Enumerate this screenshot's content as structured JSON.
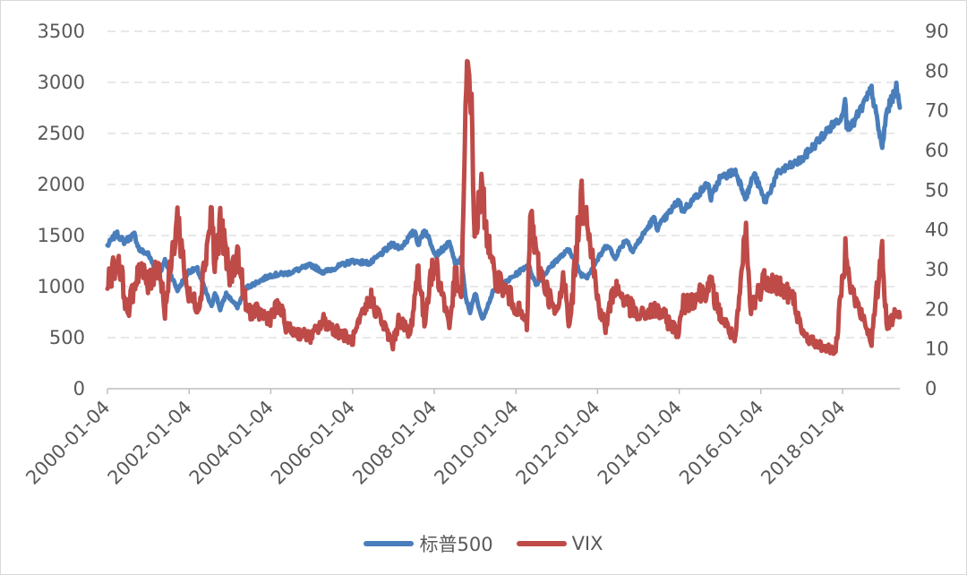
{
  "chart_data": {
    "type": "line",
    "title": "",
    "xlabel": "",
    "ylabel": "",
    "y_left": {
      "min": 0,
      "max": 3500,
      "ticks": [
        "0",
        "500",
        "1000",
        "1500",
        "2000",
        "2500",
        "3000",
        "3500"
      ]
    },
    "y_right": {
      "min": 0,
      "max": 90,
      "ticks": [
        "0",
        "10",
        "20",
        "30",
        "40",
        "50",
        "60",
        "70",
        "80",
        "90"
      ]
    },
    "x_range": [
      "2000-01-04",
      "2019-05-31"
    ],
    "x_ticks": [
      "2000-01-04",
      "2002-01-04",
      "2004-01-04",
      "2006-01-04",
      "2008-01-04",
      "2010-01-04",
      "2012-01-04",
      "2014-01-04",
      "2016-01-04",
      "2018-01-04"
    ],
    "grid": "horizontal dashed",
    "legend_position": "bottom",
    "series": [
      {
        "name": "标普500",
        "axis": "left",
        "color": "#4a7ebb",
        "points": [
          [
            "2000-01-04",
            1400
          ],
          [
            "2000-03-24",
            1520
          ],
          [
            "2000-06-01",
            1440
          ],
          [
            "2000-09-01",
            1510
          ],
          [
            "2000-10-15",
            1360
          ],
          [
            "2001-01-01",
            1320
          ],
          [
            "2001-04-04",
            1110
          ],
          [
            "2001-06-01",
            1250
          ],
          [
            "2001-09-21",
            965
          ],
          [
            "2001-12-31",
            1150
          ],
          [
            "2002-03-19",
            1170
          ],
          [
            "2002-07-23",
            800
          ],
          [
            "2002-08-22",
            950
          ],
          [
            "2002-10-09",
            777
          ],
          [
            "2002-12-01",
            930
          ],
          [
            "2003-03-11",
            800
          ],
          [
            "2003-06-01",
            990
          ],
          [
            "2003-12-31",
            1110
          ],
          [
            "2004-06-01",
            1130
          ],
          [
            "2004-12-31",
            1210
          ],
          [
            "2005-04-20",
            1140
          ],
          [
            "2005-12-31",
            1250
          ],
          [
            "2006-06-13",
            1230
          ],
          [
            "2006-12-31",
            1420
          ],
          [
            "2007-03-05",
            1375
          ],
          [
            "2007-07-16",
            1550
          ],
          [
            "2007-08-15",
            1410
          ],
          [
            "2007-10-09",
            1565
          ],
          [
            "2008-01-22",
            1310
          ],
          [
            "2008-05-19",
            1425
          ],
          [
            "2008-07-15",
            1215
          ],
          [
            "2008-09-01",
            1280
          ],
          [
            "2008-10-10",
            900
          ],
          [
            "2008-11-20",
            750
          ],
          [
            "2009-01-06",
            935
          ],
          [
            "2009-03-09",
            677
          ],
          [
            "2009-06-12",
            945
          ],
          [
            "2009-12-31",
            1115
          ],
          [
            "2010-04-23",
            1217
          ],
          [
            "2010-07-02",
            1022
          ],
          [
            "2010-12-31",
            1258
          ],
          [
            "2011-04-29",
            1364
          ],
          [
            "2011-08-08",
            1119
          ],
          [
            "2011-10-03",
            1099
          ],
          [
            "2011-12-31",
            1258
          ],
          [
            "2012-04-02",
            1419
          ],
          [
            "2012-06-04",
            1278
          ],
          [
            "2012-09-14",
            1465
          ],
          [
            "2012-11-15",
            1353
          ],
          [
            "2013-05-21",
            1669
          ],
          [
            "2013-06-24",
            1573
          ],
          [
            "2013-12-31",
            1848
          ],
          [
            "2014-02-03",
            1741
          ],
          [
            "2014-09-18",
            2011
          ],
          [
            "2014-10-15",
            1862
          ],
          [
            "2014-12-31",
            2059
          ],
          [
            "2015-05-21",
            2131
          ],
          [
            "2015-08-25",
            1867
          ],
          [
            "2015-11-03",
            2109
          ],
          [
            "2016-02-11",
            1829
          ],
          [
            "2016-06-08",
            2119
          ],
          [
            "2016-12-31",
            2239
          ],
          [
            "2017-06-19",
            2453
          ],
          [
            "2017-12-29",
            2673
          ],
          [
            "2018-01-26",
            2873
          ],
          [
            "2018-02-08",
            2581
          ],
          [
            "2018-04-02",
            2581
          ],
          [
            "2018-09-20",
            2930
          ],
          [
            "2018-12-24",
            2351
          ],
          [
            "2019-02-01",
            2706
          ],
          [
            "2019-04-30",
            2945
          ],
          [
            "2019-05-31",
            2752
          ]
        ]
      },
      {
        "name": "VIX",
        "axis": "right",
        "color": "#be4b48",
        "points": [
          [
            "2000-01-04",
            27
          ],
          [
            "2000-04-14",
            33
          ],
          [
            "2000-07-01",
            19
          ],
          [
            "2000-10-13",
            31
          ],
          [
            "2001-01-01",
            26
          ],
          [
            "2001-04-04",
            32
          ],
          [
            "2001-06-01",
            20
          ],
          [
            "2001-09-21",
            43
          ],
          [
            "2001-12-31",
            23
          ],
          [
            "2002-04-01",
            21
          ],
          [
            "2002-07-24",
            45
          ],
          [
            "2002-08-20",
            30
          ],
          [
            "2002-10-09",
            42
          ],
          [
            "2003-01-01",
            28
          ],
          [
            "2003-03-11",
            34
          ],
          [
            "2003-06-01",
            20
          ],
          [
            "2003-12-31",
            18
          ],
          [
            "2004-03-15",
            21
          ],
          [
            "2004-06-01",
            15
          ],
          [
            "2004-12-31",
            13
          ],
          [
            "2005-04-20",
            17
          ],
          [
            "2005-12-31",
            12
          ],
          [
            "2006-06-13",
            23
          ],
          [
            "2006-12-31",
            11
          ],
          [
            "2007-02-27",
            18
          ],
          [
            "2007-06-01",
            13
          ],
          [
            "2007-08-16",
            31
          ],
          [
            "2007-10-09",
            16
          ],
          [
            "2007-11-26",
            28
          ],
          [
            "2008-01-22",
            31
          ],
          [
            "2008-05-19",
            16
          ],
          [
            "2008-07-15",
            29
          ],
          [
            "2008-09-01",
            21
          ],
          [
            "2008-10-24",
            80
          ],
          [
            "2008-11-20",
            81
          ],
          [
            "2008-12-31",
            40
          ],
          [
            "2009-03-09",
            50
          ],
          [
            "2009-06-01",
            30
          ],
          [
            "2009-12-31",
            21
          ],
          [
            "2010-04-12",
            16
          ],
          [
            "2010-05-20",
            46
          ],
          [
            "2010-07-01",
            33
          ],
          [
            "2010-12-31",
            18
          ],
          [
            "2011-03-16",
            29
          ],
          [
            "2011-04-29",
            15
          ],
          [
            "2011-08-08",
            48
          ],
          [
            "2011-10-03",
            45
          ],
          [
            "2011-12-31",
            23
          ],
          [
            "2012-03-16",
            15
          ],
          [
            "2012-06-01",
            26
          ],
          [
            "2012-12-31",
            18
          ],
          [
            "2013-06-20",
            20
          ],
          [
            "2013-12-31",
            14
          ],
          [
            "2014-02-03",
            21
          ],
          [
            "2014-10-15",
            26
          ],
          [
            "2014-12-31",
            19
          ],
          [
            "2015-05-21",
            12
          ],
          [
            "2015-08-24",
            40
          ],
          [
            "2015-10-01",
            20
          ],
          [
            "2016-02-11",
            28
          ],
          [
            "2016-06-24",
            26
          ],
          [
            "2016-11-04",
            22
          ],
          [
            "2016-12-31",
            14
          ],
          [
            "2017-06-01",
            11
          ],
          [
            "2017-11-03",
            9.5
          ],
          [
            "2018-02-05",
            37
          ],
          [
            "2018-03-23",
            25
          ],
          [
            "2018-09-20",
            12
          ],
          [
            "2018-12-24",
            36
          ],
          [
            "2019-02-01",
            16
          ],
          [
            "2019-05-13",
            20
          ],
          [
            "2019-05-31",
            18
          ]
        ]
      }
    ]
  }
}
